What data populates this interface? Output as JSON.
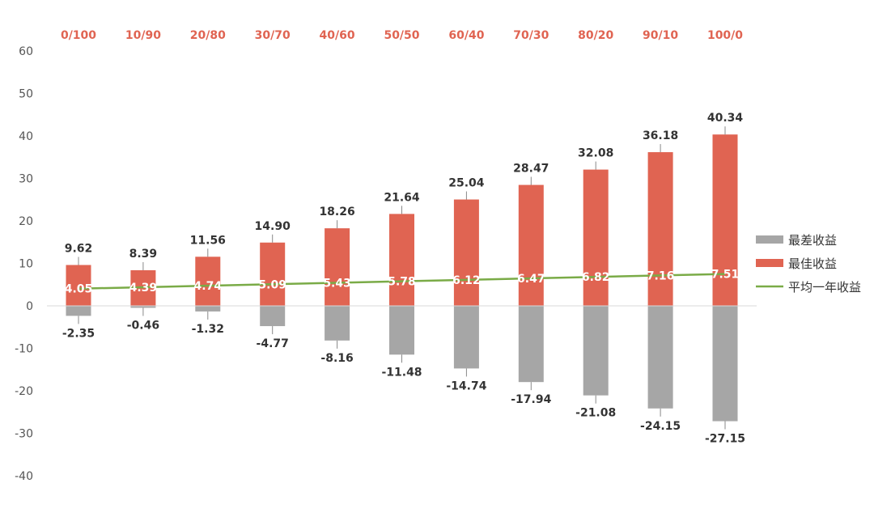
{
  "chart_data": {
    "type": "bar",
    "categories": [
      "0/100",
      "10/90",
      "20/80",
      "30/70",
      "40/60",
      "50/50",
      "60/40",
      "70/30",
      "80/20",
      "90/10",
      "100/0"
    ],
    "series": [
      {
        "name": "最差收益",
        "type": "bar",
        "color": "#a6a6a6",
        "values": [
          -2.35,
          -0.46,
          -1.32,
          -4.77,
          -8.16,
          -11.48,
          -14.74,
          -17.94,
          -21.08,
          -24.15,
          -27.15
        ]
      },
      {
        "name": "最佳收益",
        "type": "bar",
        "color": "#e06452",
        "values": [
          9.62,
          8.39,
          11.56,
          14.9,
          18.26,
          21.64,
          25.04,
          28.47,
          32.08,
          36.18,
          40.34
        ]
      },
      {
        "name": "平均一年收益",
        "type": "line",
        "color": "#7aab47",
        "values": [
          4.05,
          4.39,
          4.74,
          5.09,
          5.43,
          5.78,
          6.12,
          6.47,
          6.82,
          7.16,
          7.51
        ]
      }
    ],
    "y_ticks": [
      60,
      50,
      40,
      30,
      20,
      10,
      0,
      -10,
      -20,
      -30,
      -40
    ],
    "ylim": [
      -40,
      60
    ],
    "category_label_color": "#e06452",
    "category_axis_position": "top",
    "legend_position": "right",
    "grid": false
  }
}
